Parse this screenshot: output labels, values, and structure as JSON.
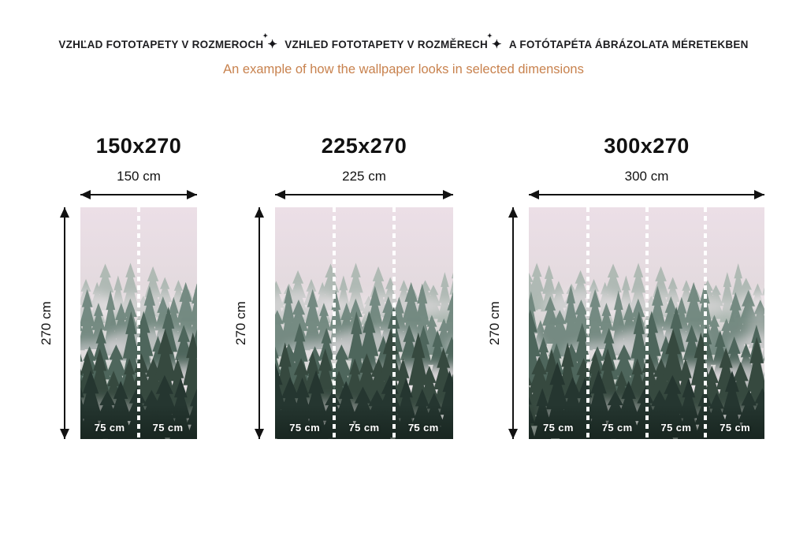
{
  "header": {
    "title_parts": [
      "VZHĽAD FOTOTAPETY V ROZMEROCH",
      "VZHLED FOTOTAPETY V ROZMĚRECH",
      "A FOTÓTAPÉTA ÁBRÁZOLATA MÉRETEKBEN"
    ],
    "separator_icon": "four-pointed-star-sparkle",
    "separator_glyph": "✦",
    "subtitle": "An example of how the wallpaper looks in selected dimensions"
  },
  "colors": {
    "header_text": "#1d1d20",
    "subtitle_text": "#c8824e",
    "dimension_lines": "#121212",
    "seam_divider": "#ffffff",
    "segment_label_text": "#ffffff",
    "fog_sky": "#e9dde4",
    "forest_dark": "#253630"
  },
  "panels": [
    {
      "title": "150x270",
      "width_label": "150 cm",
      "height_label": "270 cm",
      "segments": [
        "75 cm",
        "75 cm"
      ]
    },
    {
      "title": "225x270",
      "width_label": "225 cm",
      "height_label": "270 cm",
      "segments": [
        "75 cm",
        "75 cm",
        "75 cm"
      ]
    },
    {
      "title": "300x270",
      "width_label": "300 cm",
      "height_label": "270 cm",
      "segments": [
        "75 cm",
        "75 cm",
        "75 cm",
        "75 cm"
      ]
    }
  ]
}
